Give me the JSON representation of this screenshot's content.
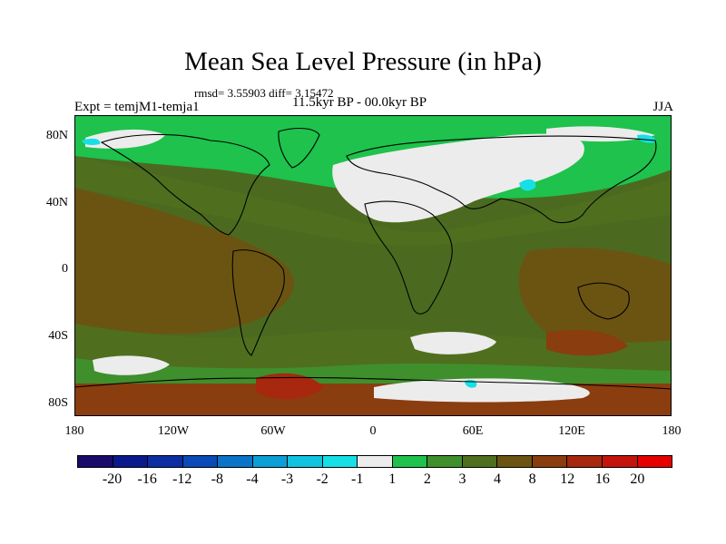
{
  "title": "Mean Sea Level Pressure (in hPa)",
  "stats": "rmsd= 3.55903  diff= 3.15472",
  "experiment": "Expt = temjM1-temja1",
  "period": "11.5kyr BP - 00.0kyr BP",
  "season": "JJA",
  "axes": {
    "lat_labels": [
      "80N",
      "40N",
      "0",
      "40S",
      "80S"
    ],
    "lat_values": [
      80,
      40,
      0,
      -40,
      -80
    ],
    "lon_labels": [
      "180",
      "120W",
      "60W",
      "0",
      "60E",
      "120E",
      "180"
    ],
    "lon_values": [
      -180,
      -120,
      -60,
      0,
      60,
      120,
      180
    ],
    "lat_range": [
      -90,
      90
    ],
    "lon_range": [
      -180,
      180
    ]
  },
  "colorbar": {
    "labels": [
      "-20",
      "-16",
      "-12",
      "-8",
      "-4",
      "-3",
      "-2",
      "-1",
      "1",
      "2",
      "3",
      "4",
      "8",
      "12",
      "16",
      "20"
    ],
    "colors": [
      "#1a0b6b",
      "#0a1a8c",
      "#0b2ea3",
      "#0a4bb8",
      "#0a74c9",
      "#0a9fd6",
      "#10c3e0",
      "#16e0e6",
      "#ececec",
      "#1ec24c",
      "#3f8f2c",
      "#4f6f1e",
      "#6b5412",
      "#8a3d0f",
      "#a7280e",
      "#c4140c",
      "#e60000"
    ]
  },
  "colors": {
    "ocean": "#4b6a20",
    "land_outline": "#000000"
  }
}
